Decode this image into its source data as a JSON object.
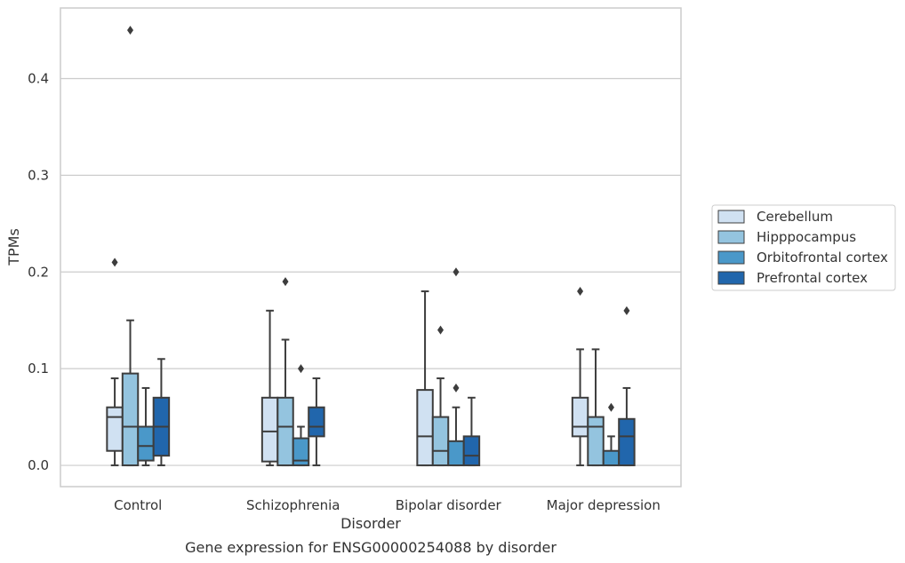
{
  "caption": "Gene expression for ENSG00000254088 by disorder",
  "chart_data": {
    "type": "box",
    "xlabel": "Disorder",
    "ylabel": "TPMs",
    "ylim": [
      -0.022,
      0.473
    ],
    "yticks": [
      0.0,
      0.1,
      0.2,
      0.3,
      0.4
    ],
    "ytick_labels": [
      "0.0",
      "0.1",
      "0.2",
      "0.3",
      "0.4"
    ],
    "grid": "horizontal",
    "legend_position": "right",
    "categories": [
      "Control",
      "Schizophrenia",
      "Bipolar disorder",
      "Major depression"
    ],
    "series": [
      {
        "name": "Cerebellum",
        "color": "#d0e1f2",
        "boxes": [
          {
            "whisker_low": 0.0,
            "q1": 0.015,
            "median": 0.05,
            "q3": 0.06,
            "whisker_high": 0.09,
            "outliers": [
              0.21
            ]
          },
          {
            "whisker_low": 0.0,
            "q1": 0.004,
            "median": 0.035,
            "q3": 0.07,
            "whisker_high": 0.16,
            "outliers": []
          },
          {
            "whisker_low": 0.0,
            "q1": 0.0,
            "median": 0.03,
            "q3": 0.078,
            "whisker_high": 0.18,
            "outliers": []
          },
          {
            "whisker_low": 0.0,
            "q1": 0.03,
            "median": 0.04,
            "q3": 0.07,
            "whisker_high": 0.12,
            "outliers": [
              0.18
            ]
          }
        ]
      },
      {
        "name": "Hipppocampus",
        "color": "#94c4df",
        "boxes": [
          {
            "whisker_low": 0.0,
            "q1": 0.0,
            "median": 0.04,
            "q3": 0.095,
            "whisker_high": 0.15,
            "outliers": [
              0.45
            ]
          },
          {
            "whisker_low": 0.0,
            "q1": 0.0,
            "median": 0.04,
            "q3": 0.07,
            "whisker_high": 0.13,
            "outliers": [
              0.19
            ]
          },
          {
            "whisker_low": 0.0,
            "q1": 0.0,
            "median": 0.015,
            "q3": 0.05,
            "whisker_high": 0.09,
            "outliers": [
              0.14
            ]
          },
          {
            "whisker_low": 0.0,
            "q1": 0.0,
            "median": 0.04,
            "q3": 0.05,
            "whisker_high": 0.12,
            "outliers": []
          }
        ]
      },
      {
        "name": "Orbitofrontal cortex",
        "color": "#4a98c9",
        "boxes": [
          {
            "whisker_low": 0.0,
            "q1": 0.005,
            "median": 0.02,
            "q3": 0.04,
            "whisker_high": 0.08,
            "outliers": []
          },
          {
            "whisker_low": 0.0,
            "q1": 0.0,
            "median": 0.005,
            "q3": 0.028,
            "whisker_high": 0.04,
            "outliers": [
              0.1
            ]
          },
          {
            "whisker_low": 0.0,
            "q1": 0.0,
            "median": 0.0,
            "q3": 0.025,
            "whisker_high": 0.06,
            "outliers": [
              0.08,
              0.2
            ]
          },
          {
            "whisker_low": 0.0,
            "q1": 0.0,
            "median": 0.0,
            "q3": 0.015,
            "whisker_high": 0.03,
            "outliers": [
              0.06
            ]
          }
        ]
      },
      {
        "name": "Prefrontal cortex",
        "color": "#2166ac",
        "boxes": [
          {
            "whisker_low": 0.0,
            "q1": 0.01,
            "median": 0.04,
            "q3": 0.07,
            "whisker_high": 0.11,
            "outliers": []
          },
          {
            "whisker_low": 0.0,
            "q1": 0.03,
            "median": 0.04,
            "q3": 0.06,
            "whisker_high": 0.09,
            "outliers": []
          },
          {
            "whisker_low": 0.0,
            "q1": 0.0,
            "median": 0.01,
            "q3": 0.03,
            "whisker_high": 0.07,
            "outliers": []
          },
          {
            "whisker_low": 0.0,
            "q1": 0.0,
            "median": 0.03,
            "q3": 0.048,
            "whisker_high": 0.08,
            "outliers": [
              0.16
            ]
          }
        ]
      }
    ]
  }
}
